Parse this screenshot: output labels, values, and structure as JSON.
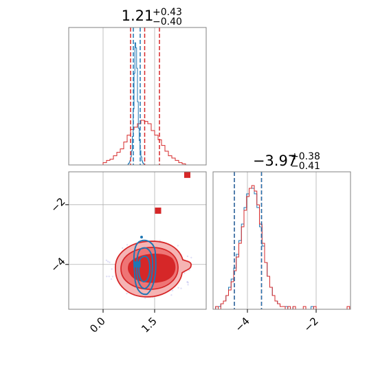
{
  "chart_data": [
    {
      "panel": "marginal-param-1",
      "type": "histogram",
      "title": {
        "median": "1.21",
        "plus": "+0.43",
        "minus": "−0.40"
      },
      "xlim": [
        -1.0,
        3.0
      ],
      "grid": true,
      "colors": {
        "red": "#d62728",
        "blue": "#1f77b4"
      },
      "series": [
        {
          "color": "red",
          "quantiles": [
            0.8,
            1.21,
            1.64
          ],
          "histogram": {
            "x0": 0.0,
            "dx": 0.1,
            "counts": [
              2,
              4,
              5,
              8,
              11,
              14,
              20,
              26,
              31,
              33,
              36,
              39,
              38,
              36,
              30,
              26,
              22,
              17,
              12,
              8,
              6,
              4,
              2,
              1
            ]
          }
        },
        {
          "color": "blue",
          "quantiles": [
            0.88,
            1.08
          ],
          "histogram": {
            "x0": 0.7,
            "dx": 0.025,
            "counts": [
              0,
              1,
              2,
              4,
              8,
              14,
              28,
              55,
              90,
              120,
              115,
              95,
              62,
              36,
              24,
              14,
              8,
              4,
              2,
              1,
              0
            ]
          }
        }
      ]
    },
    {
      "panel": "joint",
      "type": "contour",
      "xlim": [
        -1.0,
        3.0
      ],
      "ylim": [
        -5.5,
        -0.9
      ],
      "xticks": [
        "0.0",
        "1.5"
      ],
      "yticks": [
        "−2",
        "−4"
      ],
      "grid": true,
      "markers": [
        {
          "color": "red",
          "x": 2.45,
          "y": -1.0
        },
        {
          "color": "red",
          "x": 1.6,
          "y": -2.2
        },
        {
          "color": "blue",
          "x": 1.0,
          "y": -4.0
        }
      ],
      "red_contour_center": [
        1.2,
        -3.9
      ],
      "blue_contour_center": [
        1.0,
        -3.95
      ]
    },
    {
      "panel": "marginal-param-2",
      "type": "histogram",
      "title": {
        "median": "−3.97",
        "plus": "+0.38",
        "minus": "−0.41"
      },
      "xlim": [
        -5.0,
        -1.0
      ],
      "xticks": [
        "−4",
        "−2"
      ],
      "grid": true,
      "series": [
        {
          "color": "red",
          "quantiles": [
            -4.38,
            -3.59
          ],
          "histogram": {
            "x0": -5.0,
            "dx": 0.075,
            "counts": [
              0,
              1,
              0,
              2,
              3,
              5,
              7,
              10,
              14,
              19,
              24,
              30,
              36,
              41,
              44,
              45,
              43,
              38,
              31,
              24,
              17,
              12,
              8,
              5,
              3,
              2,
              1,
              1,
              0,
              1,
              0,
              1,
              0,
              0,
              0,
              1,
              0,
              0,
              0,
              1,
              0,
              0,
              0,
              0,
              0,
              0,
              0,
              0,
              0,
              0,
              0,
              0,
              1
            ]
          }
        },
        {
          "color": "blue",
          "quantiles": [
            -4.38,
            -3.59
          ],
          "histogram": {
            "x0": -5.0,
            "dx": 0.075,
            "counts": [
              0,
              1,
              1,
              2,
              3,
              5,
              8,
              11,
              15,
              20,
              25,
              31,
              37,
              42,
              44,
              44,
              42,
              37,
              30,
              23,
              17,
              12,
              8,
              5,
              3,
              2,
              1,
              1,
              1,
              0,
              0,
              1,
              0,
              0,
              0,
              0,
              0,
              0,
              1,
              0,
              0,
              0,
              0,
              0,
              0,
              0,
              0,
              0,
              0,
              0,
              0,
              0,
              0
            ]
          }
        }
      ]
    }
  ]
}
